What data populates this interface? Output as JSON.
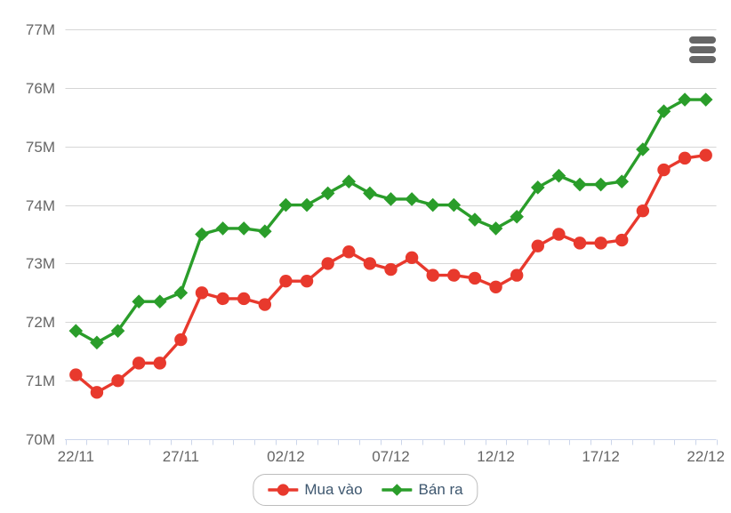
{
  "chart_data": {
    "type": "line",
    "title": "",
    "categories": [
      "22/11",
      "23/11",
      "24/11",
      "25/11",
      "26/11",
      "27/11",
      "28/11",
      "29/11",
      "30/11",
      "01/12",
      "02/12",
      "03/12",
      "04/12",
      "05/12",
      "06/12",
      "07/12",
      "08/12",
      "09/12",
      "10/12",
      "11/12",
      "12/12",
      "13/12",
      "14/12",
      "15/12",
      "16/12",
      "17/12",
      "18/12",
      "19/12",
      "20/12",
      "21/12",
      "22/12"
    ],
    "x_tick_labels": [
      "22/11",
      "27/11",
      "02/12",
      "07/12",
      "12/12",
      "17/12",
      "22/12"
    ],
    "x_label_every": 5,
    "series": [
      {
        "name": "Mua vào",
        "color": "#e8392d",
        "marker": "circle",
        "values": [
          71.1,
          70.8,
          71.0,
          71.3,
          71.3,
          71.7,
          72.5,
          72.4,
          72.4,
          72.3,
          72.7,
          72.7,
          73.0,
          73.2,
          73.0,
          72.9,
          73.1,
          72.8,
          72.8,
          72.75,
          72.6,
          72.8,
          73.3,
          73.5,
          73.35,
          73.35,
          73.4,
          73.9,
          74.6,
          74.8,
          74.85
        ]
      },
      {
        "name": "Bán ra",
        "color": "#2a9d2a",
        "marker": "diamond",
        "values": [
          71.85,
          71.65,
          71.85,
          72.35,
          72.35,
          72.5,
          73.5,
          73.6,
          73.6,
          73.55,
          74.0,
          74.0,
          74.2,
          74.4,
          74.2,
          74.1,
          74.1,
          74.0,
          74.0,
          73.75,
          73.6,
          73.8,
          74.3,
          74.5,
          74.35,
          74.35,
          74.4,
          74.95,
          75.6,
          75.8,
          75.8
        ]
      }
    ],
    "ylim": [
      70,
      77
    ],
    "y_tick_step": 1,
    "y_tick_labels": [
      "70M",
      "71M",
      "72M",
      "73M",
      "74M",
      "75M",
      "76M",
      "77M"
    ],
    "grid": true,
    "legend_position": "bottom-center"
  },
  "icons": {
    "context_menu": "hamburger-icon"
  },
  "colors": {
    "background": "#ffffff",
    "buy_series": "#e8392d",
    "sell_series": "#2a9d2a",
    "gridline": "#d6d6d6",
    "axis_line": "#ccd6eb",
    "axis_label": "#666666",
    "legend_text": "#3e576f",
    "legend_border": "#bdbdbd",
    "menu_icon": "#666666"
  }
}
